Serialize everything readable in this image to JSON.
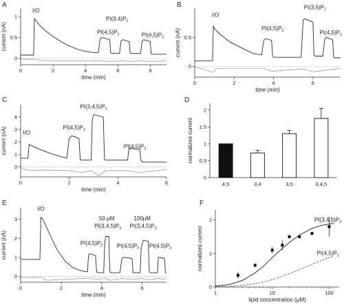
{
  "colors": {
    "trace": "#2a2a2a",
    "baseline": "#8a8a8a",
    "bar_filled": "#111111",
    "bar_empty": "#ffffff"
  },
  "chart_data": [
    {
      "panel": "A",
      "type": "line",
      "xlabel": "time (min)",
      "ylabel": "current (nA)",
      "xticks": [
        "0",
        "2",
        "4",
        "6",
        "8"
      ],
      "yticks": [
        "0",
        "0.5",
        "1"
      ],
      "xlim": [
        0,
        9
      ],
      "ylim": [
        -0.15,
        1.2
      ],
      "annotations": [
        {
          "main": "I/O",
          "sub": "",
          "x": 0.95,
          "y": 1.1
        },
        {
          "main": "PI(3,4)P",
          "sub": "2",
          "x": 5.95,
          "y": 0.9
        },
        {
          "main": "PI(4,5)P",
          "sub": "2",
          "x": 5.4,
          "y": 0.58
        },
        {
          "main": "PI(4,5)P",
          "sub": "2",
          "x": 8.15,
          "y": 0.52
        }
      ],
      "series": [
        {
          "style": "trace",
          "x": [
            0,
            0.8,
            0.85,
            0.9,
            1.2,
            1.6,
            2.0,
            2.5,
            3.0,
            3.5,
            4.0,
            4.5,
            4.8,
            4.9,
            5.0,
            5.5,
            5.55,
            5.6,
            6.1,
            6.2,
            6.3,
            6.7,
            6.75,
            6.8,
            7.4,
            7.5,
            7.6,
            8.0,
            8.05,
            8.1,
            9.0
          ],
          "y": [
            0.08,
            0.08,
            0.95,
            0.93,
            0.78,
            0.64,
            0.52,
            0.4,
            0.3,
            0.22,
            0.17,
            0.14,
            0.14,
            0.46,
            0.5,
            0.45,
            0.14,
            0.12,
            0.12,
            0.42,
            0.45,
            0.4,
            0.14,
            0.12,
            0.12,
            0.42,
            0.45,
            0.4,
            0.12,
            0.1,
            0.1
          ]
        },
        {
          "style": "baseline",
          "x": [
            0,
            0.9,
            1.3,
            2.5,
            4.8,
            5.6,
            6.2,
            6.8,
            7.5,
            8.1,
            9.0
          ],
          "y": [
            -0.02,
            -0.02,
            -0.05,
            -0.06,
            -0.06,
            -0.07,
            -0.06,
            -0.07,
            -0.06,
            -0.07,
            -0.06
          ]
        }
      ]
    },
    {
      "panel": "B",
      "type": "line",
      "xlabel": "time (min)",
      "ylabel": "current (nA)",
      "xticks": [
        "0",
        "2",
        "4",
        "6"
      ],
      "yticks": [
        "0",
        "0.5"
      ],
      "xlim": [
        0,
        7.4
      ],
      "ylim": [
        -0.18,
        1.0
      ],
      "annotations": [
        {
          "main": "I/O",
          "sub": "",
          "x": 1.05,
          "y": 0.85
        },
        {
          "main": "PI(4,5)P",
          "sub": "2",
          "x": 3.95,
          "y": 0.62
        },
        {
          "main": "PI(3,5)P",
          "sub": "2",
          "x": 6.1,
          "y": 0.98
        },
        {
          "main": "PI(4,5)P",
          "sub": "2",
          "x": 6.9,
          "y": 0.55
        }
      ],
      "series": [
        {
          "style": "trace",
          "x": [
            0,
            0.9,
            0.95,
            1.0,
            1.3,
            1.8,
            2.5,
            3.0,
            3.4,
            3.5,
            3.6,
            3.9,
            3.95,
            4.0,
            5.4,
            5.5,
            5.6,
            6.0,
            6.05,
            6.1,
            6.5,
            6.6,
            6.7,
            7.0,
            7.05,
            7.1,
            7.4
          ],
          "y": [
            0.1,
            0.1,
            0.7,
            0.65,
            0.55,
            0.42,
            0.3,
            0.22,
            0.2,
            0.45,
            0.48,
            0.45,
            0.18,
            0.16,
            0.16,
            0.8,
            0.82,
            0.76,
            0.2,
            0.18,
            0.18,
            0.48,
            0.5,
            0.46,
            0.16,
            0.15,
            0.15
          ]
        },
        {
          "style": "baseline",
          "x": [
            0,
            0.95,
            1.1,
            3.5,
            3.9,
            5.5,
            6.0,
            7.4
          ],
          "y": [
            0.0,
            -0.1,
            -0.03,
            -0.03,
            -0.08,
            -0.04,
            -0.09,
            -0.03
          ]
        }
      ]
    },
    {
      "panel": "C",
      "type": "line",
      "xlabel": "time (min)",
      "ylabel": "current (nA)",
      "xticks": [
        "0",
        "2",
        "4",
        "6"
      ],
      "yticks": [
        "0",
        "1",
        "2",
        "3",
        "4"
      ],
      "xlim": [
        0,
        6
      ],
      "ylim": [
        -0.8,
        5.0
      ],
      "annotations": [
        {
          "main": "I/O",
          "sub": "",
          "x": 0.25,
          "y": 2.6
        },
        {
          "main": "PI(4,5)P",
          "sub": "2",
          "x": 2.2,
          "y": 3.0
        },
        {
          "main": "PI(3,4,5)P",
          "sub": "3",
          "x": 3.0,
          "y": 4.7
        },
        {
          "main": "PI(4,5)P",
          "sub": "2",
          "x": 4.7,
          "y": 1.5
        }
      ],
      "series": [
        {
          "style": "trace",
          "x": [
            0,
            0.3,
            0.35,
            0.4,
            0.8,
            1.2,
            1.6,
            1.9,
            2.0,
            2.1,
            2.4,
            2.45,
            2.5,
            2.9,
            2.95,
            3.0,
            3.4,
            3.45,
            3.5,
            4.4,
            4.45,
            4.5,
            4.9,
            4.95,
            5.0,
            6.0
          ],
          "y": [
            0.7,
            0.7,
            1.8,
            1.75,
            1.4,
            1.1,
            0.85,
            0.7,
            2.3,
            2.5,
            2.3,
            0.6,
            0.55,
            0.55,
            3.8,
            4.2,
            4.0,
            0.6,
            0.55,
            0.55,
            1.4,
            1.5,
            1.4,
            0.5,
            0.4,
            0.4
          ]
        },
        {
          "style": "baseline",
          "x": [
            0,
            0.4,
            1.0,
            2.0,
            2.5,
            2.9,
            3.2,
            3.5,
            4.4,
            4.9,
            6.0
          ],
          "y": [
            -0.1,
            -0.3,
            -0.25,
            -0.3,
            -0.45,
            -0.3,
            -0.7,
            -0.3,
            -0.3,
            -0.45,
            -0.2
          ]
        }
      ]
    },
    {
      "panel": "D",
      "type": "bar",
      "ylabel": "normalized current",
      "categories": [
        "4,5",
        "3,4",
        "3,5",
        "3,4,5"
      ],
      "values": [
        1.0,
        0.73,
        1.3,
        1.75
      ],
      "errors": [
        0,
        0.08,
        0.1,
        0.3
      ],
      "filled": [
        true,
        false,
        false,
        false
      ],
      "yticks": [
        "0",
        "0.5",
        "1",
        "1.5",
        "2"
      ],
      "ylim": [
        0,
        2.2
      ]
    },
    {
      "panel": "E",
      "type": "line",
      "xlabel": "time (min)",
      "ylabel": "current (nA)",
      "xticks": [
        "0",
        "2",
        "4",
        "6"
      ],
      "yticks": [
        "0",
        "1",
        "2",
        "3"
      ],
      "xlim": [
        0,
        7.2
      ],
      "ylim": [
        -0.3,
        3.6
      ],
      "annotations": [
        {
          "main": "I/O",
          "sub": "",
          "x": 1.0,
          "y": 3.45
        },
        {
          "main": "PI(4,5)P",
          "sub": "2",
          "x": 3.5,
          "y": 1.65
        },
        {
          "main": "50 μM",
          "sub": "",
          "x": 4.25,
          "y": 2.95
        },
        {
          "main": "PI(3,4,5)P",
          "sub": "3",
          "x": 4.3,
          "y": 2.55
        },
        {
          "main": "PI(4,5)P",
          "sub": "2",
          "x": 5.3,
          "y": 1.5
        },
        {
          "main": "100μM",
          "sub": "",
          "x": 6.0,
          "y": 2.95
        },
        {
          "main": "PI(3,4,5)P",
          "sub": "3",
          "x": 6.05,
          "y": 2.55
        },
        {
          "main": "PI(4,5)P",
          "sub": "2",
          "x": 6.9,
          "y": 1.5
        }
      ],
      "series": [
        {
          "style": "trace",
          "x": [
            0,
            0.95,
            1.0,
            1.1,
            1.4,
            1.8,
            2.2,
            2.6,
            3.0,
            3.3,
            3.35,
            3.4,
            3.7,
            3.75,
            3.8,
            4.1,
            4.15,
            4.2,
            4.35,
            4.4,
            4.45,
            4.9,
            5.0,
            5.1,
            5.5,
            5.55,
            5.6,
            5.9,
            5.95,
            6.05,
            6.3,
            6.35,
            6.4,
            6.75,
            6.8,
            6.85,
            7.1,
            7.15,
            7.2
          ],
          "y": [
            0.9,
            0.9,
            3.1,
            3.0,
            2.3,
            1.4,
            0.8,
            0.45,
            0.3,
            0.25,
            1.1,
            1.2,
            1.1,
            0.25,
            0.2,
            0.2,
            1.7,
            2.1,
            2.1,
            0.3,
            0.2,
            0.2,
            0.95,
            1.0,
            0.95,
            0.2,
            0.2,
            0.2,
            1.5,
            1.9,
            1.85,
            0.25,
            0.2,
            0.2,
            1.0,
            1.0,
            0.95,
            0.2,
            0.2
          ]
        },
        {
          "style": "baseline",
          "x": [
            0,
            1.0,
            1.3,
            3.4,
            3.7,
            4.2,
            4.4,
            5.0,
            5.5,
            6.0,
            6.3,
            6.8,
            7.1,
            7.2
          ],
          "y": [
            -0.05,
            -0.05,
            -0.2,
            -0.08,
            -0.15,
            -0.1,
            -0.2,
            -0.1,
            -0.15,
            -0.1,
            -0.18,
            -0.1,
            -0.15,
            -0.1
          ]
        }
      ]
    },
    {
      "panel": "F",
      "type": "scatter",
      "xlabel": "lipid concentration (μM)",
      "ylabel": "normalized current",
      "x_scale": "log",
      "xticks": [
        "1",
        "10",
        "100"
      ],
      "yticks": [
        "0",
        "1",
        "2"
      ],
      "xlim": [
        1,
        150
      ],
      "ylim": [
        0,
        2.3
      ],
      "points": {
        "x": [
          2.5,
          5,
          10,
          15,
          20,
          30,
          50,
          100
        ],
        "y": [
          0.35,
          0.65,
          1.1,
          1.25,
          1.5,
          1.5,
          1.6,
          1.8
        ],
        "err": [
          0.1,
          0.05,
          0.1,
          0.15,
          0.05,
          0.05,
          0.05,
          0.3
        ]
      },
      "fits": [
        {
          "name": "PI(3,4,5)P",
          "sub": "3",
          "style": "solid",
          "x": [
            1,
            1.5,
            2,
            3,
            5,
            7,
            10,
            15,
            20,
            30,
            50,
            70,
            100,
            120
          ],
          "y": [
            0.03,
            0.06,
            0.1,
            0.2,
            0.42,
            0.62,
            0.88,
            1.15,
            1.33,
            1.55,
            1.75,
            1.83,
            1.88,
            1.9
          ]
        },
        {
          "name": "PI(4,5)P",
          "sub": "2",
          "style": "dashed",
          "x": [
            1,
            2,
            3,
            5,
            7,
            10,
            15,
            20,
            30,
            50,
            70,
            100,
            120
          ],
          "y": [
            0.01,
            0.03,
            0.05,
            0.1,
            0.15,
            0.22,
            0.32,
            0.4,
            0.52,
            0.68,
            0.78,
            0.88,
            0.92
          ]
        }
      ],
      "label_pos": [
        [
          95,
          1.95
        ],
        [
          95,
          0.95
        ]
      ]
    }
  ]
}
